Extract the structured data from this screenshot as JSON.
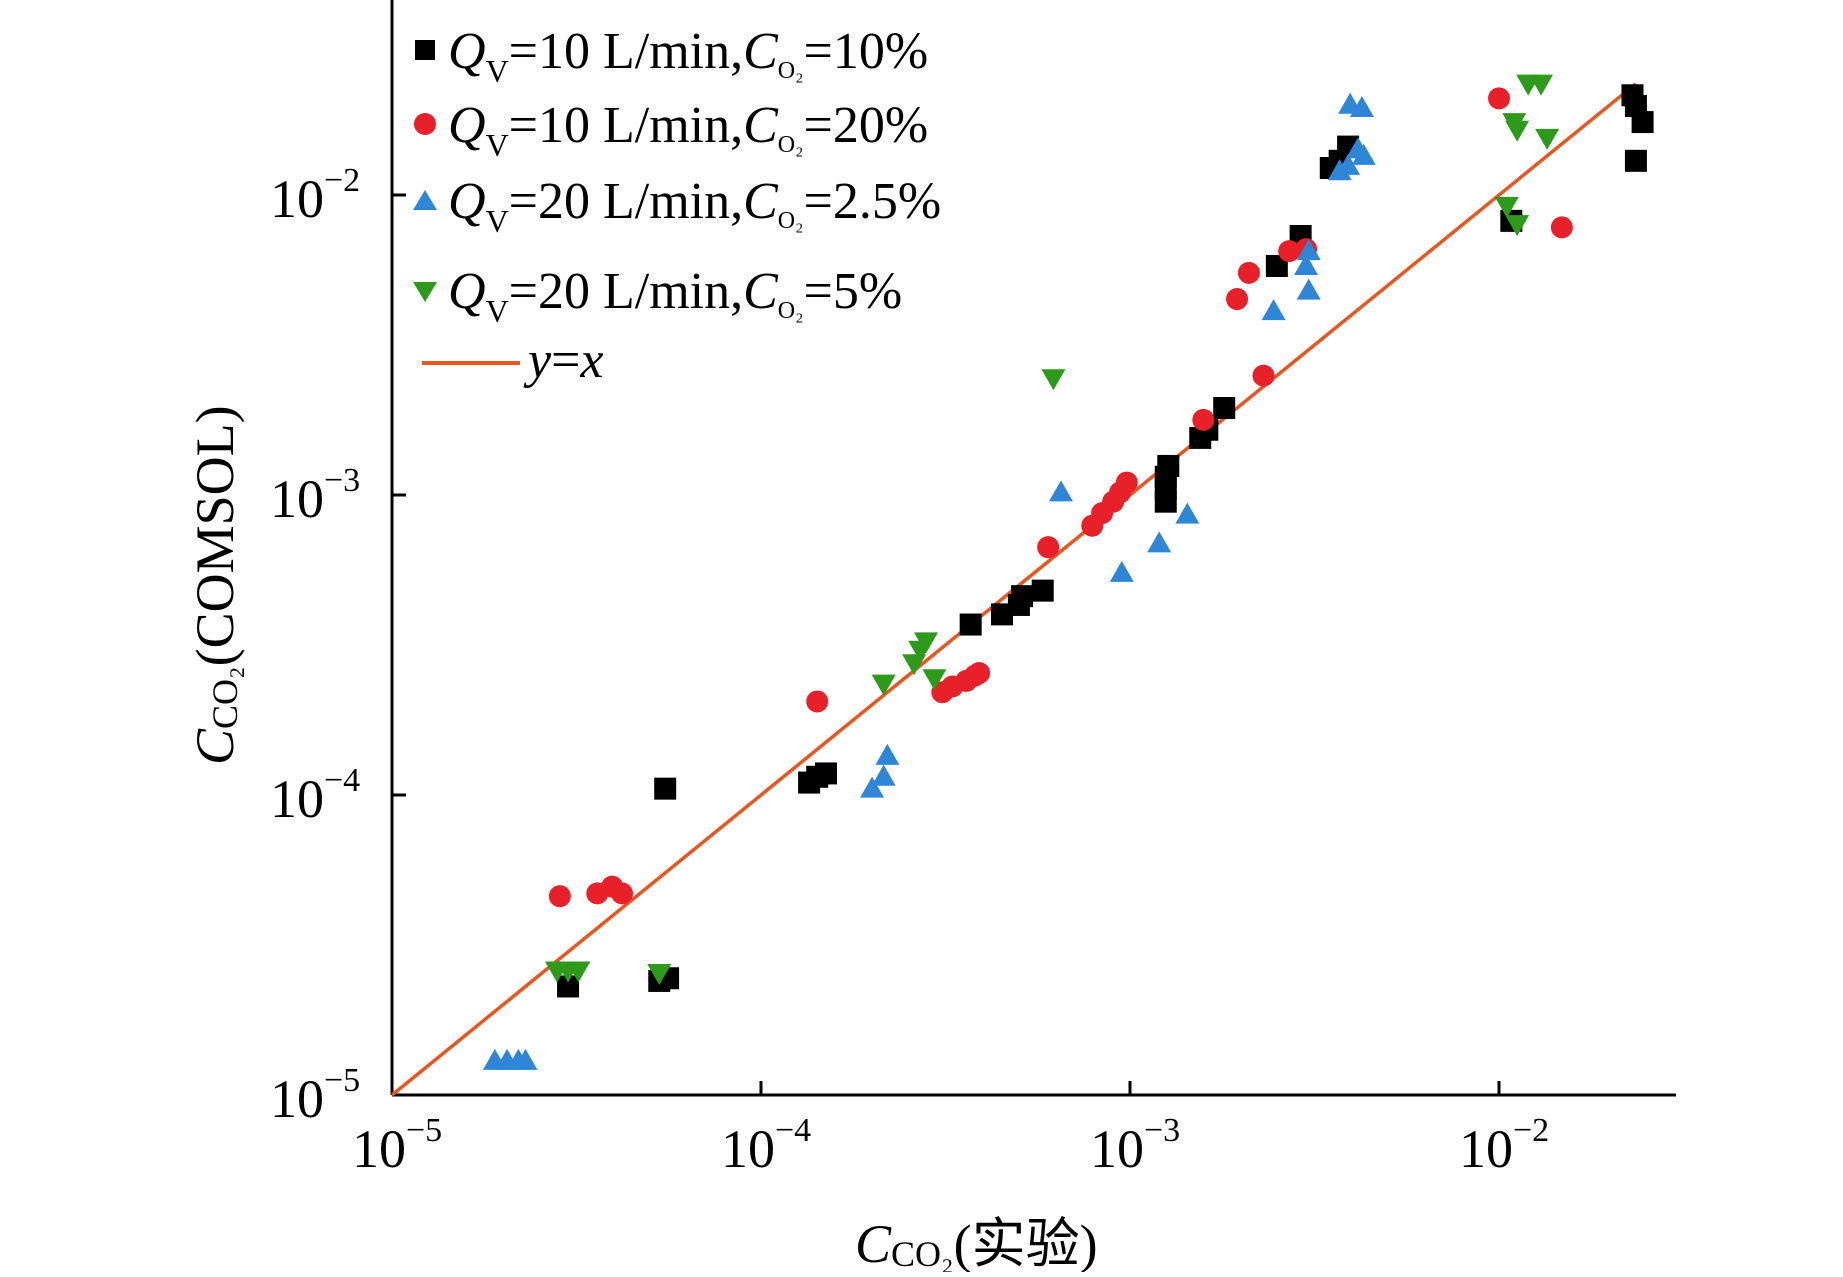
{
  "chart_data": {
    "type": "scatter",
    "title": "",
    "xlabel": {
      "main": "C",
      "sub": "CO₂",
      "suffix": "(实验)"
    },
    "ylabel": {
      "main": "C",
      "sub": "CO₂",
      "suffix": "(COMSOL)"
    },
    "xscale": "log",
    "yscale": "log",
    "xlim": [
      1e-05,
      0.03
    ],
    "ylim": [
      1e-05,
      0.06
    ],
    "xticks": [
      {
        "value": 1e-05,
        "base": "10",
        "exp": "−5"
      },
      {
        "value": 0.0001,
        "base": "10",
        "exp": "−4"
      },
      {
        "value": 0.001,
        "base": "10",
        "exp": "−3"
      },
      {
        "value": 0.01,
        "base": "10",
        "exp": "−2"
      }
    ],
    "yticks": [
      {
        "value": 1e-05,
        "base": "10",
        "exp": "−5"
      },
      {
        "value": 0.0001,
        "base": "10",
        "exp": "−4"
      },
      {
        "value": 0.001,
        "base": "10",
        "exp": "−3"
      },
      {
        "value": 0.01,
        "base": "10",
        "exp": "−2"
      }
    ],
    "grid": false,
    "legend_position": "top-left",
    "series": [
      {
        "name": "QV=10 L/min,CO2=10%",
        "legend": {
          "q": "Q",
          "qsub": "V",
          "rate": "=10 L/min,",
          "c": "C",
          "csub": "O₂",
          "conc": "=10%"
        },
        "marker": "square",
        "color": "#000000",
        "points": [
          [
            3e-05,
            2.3e-05
          ],
          [
            5.3e-05,
            2.4e-05
          ],
          [
            5.6e-05,
            2.45e-05
          ],
          [
            5.5e-05,
            0.000105
          ],
          [
            0.000135,
            0.00011
          ],
          [
            0.000142,
            0.000115
          ],
          [
            0.00015,
            0.000118
          ],
          [
            0.00037,
            0.00037
          ],
          [
            0.00045,
            0.0004
          ],
          [
            0.0005,
            0.00043
          ],
          [
            0.00051,
            0.00046
          ],
          [
            0.00058,
            0.00048
          ],
          [
            0.00125,
            0.00095
          ],
          [
            0.00125,
            0.00105
          ],
          [
            0.00125,
            0.00115
          ],
          [
            0.00127,
            0.00125
          ],
          [
            0.00155,
            0.00155
          ],
          [
            0.00162,
            0.00165
          ],
          [
            0.0018,
            0.00195
          ],
          [
            0.0025,
            0.0058
          ],
          [
            0.0029,
            0.0073
          ],
          [
            0.0035,
            0.0123
          ],
          [
            0.0037,
            0.013
          ],
          [
            0.0039,
            0.0145
          ],
          [
            0.0108,
            0.0082
          ],
          [
            0.023,
            0.0215
          ],
          [
            0.0235,
            0.0198
          ],
          [
            0.0245,
            0.0175
          ],
          [
            0.0235,
            0.013
          ]
        ]
      },
      {
        "name": "QV=10 L/min,CO2=20%",
        "legend": {
          "q": "Q",
          "qsub": "V",
          "rate": "=10 L/min,",
          "c": "C",
          "csub": "O₂",
          "conc": "=20%"
        },
        "marker": "circle",
        "color": "#e8202a",
        "points": [
          [
            2.85e-05,
            4.6e-05
          ],
          [
            3.6e-05,
            4.7e-05
          ],
          [
            3.95e-05,
            4.95e-05
          ],
          [
            4.2e-05,
            4.7e-05
          ],
          [
            0.000142,
            0.000205
          ],
          [
            0.00031,
            0.00022
          ],
          [
            0.00033,
            0.00023
          ],
          [
            0.00036,
            0.00024
          ],
          [
            0.00038,
            0.00025
          ],
          [
            0.00039,
            0.000255
          ],
          [
            0.0006,
            0.00067
          ],
          [
            0.00079,
            0.00079
          ],
          [
            0.00084,
            0.00087
          ],
          [
            0.0009,
            0.00095
          ],
          [
            0.00094,
            0.00102
          ],
          [
            0.00098,
            0.0011
          ],
          [
            0.00158,
            0.00178
          ],
          [
            0.00195,
            0.0045
          ],
          [
            0.0021,
            0.0055
          ],
          [
            0.0023,
            0.0025
          ],
          [
            0.0027,
            0.0065
          ],
          [
            0.003,
            0.0066
          ],
          [
            0.01,
            0.021
          ],
          [
            0.0148,
            0.0078
          ]
        ]
      },
      {
        "name": "QV=20 L/min,CO2=2.5%",
        "legend": {
          "q": "Q",
          "qsub": "V",
          "rate": "=20 L/min,",
          "c": "C",
          "csub": "O₂",
          "conc": "=2.5%"
        },
        "marker": "triangle-up",
        "color": "#2f86d6",
        "points": [
          [
            1.9e-05,
            1.3e-05
          ],
          [
            2.05e-05,
            1.3e-05
          ],
          [
            2.2e-05,
            1.3e-05
          ],
          [
            2.3e-05,
            1.3e-05
          ],
          [
            0.0002,
            0.000105
          ],
          [
            0.000215,
            0.000115
          ],
          [
            0.00022,
            0.000135
          ],
          [
            0.00065,
            0.00102
          ],
          [
            0.00095,
            0.00055
          ],
          [
            0.0012,
            0.00069
          ],
          [
            0.00143,
            0.00086
          ],
          [
            0.00245,
            0.0041
          ],
          [
            0.00305,
            0.0048
          ],
          [
            0.003,
            0.0058
          ],
          [
            0.00305,
            0.0065
          ],
          [
            0.0037,
            0.012
          ],
          [
            0.0039,
            0.0125
          ],
          [
            0.0043,
            0.0135
          ],
          [
            0.00415,
            0.0142
          ],
          [
            0.00395,
            0.02
          ],
          [
            0.00425,
            0.0195
          ]
        ]
      },
      {
        "name": "QV=20 L/min,CO2=5%",
        "legend": {
          "q": "Q",
          "qsub": "V",
          "rate": "=20 L/min,",
          "c": "C",
          "csub": "O₂",
          "conc": "=5%"
        },
        "marker": "triangle-down",
        "color": "#2e9a1c",
        "points": [
          [
            2.8e-05,
            2.6e-05
          ],
          [
            3e-05,
            2.6e-05
          ],
          [
            3.2e-05,
            2.6e-05
          ],
          [
            5.3e-05,
            2.55e-05
          ],
          [
            0.000215,
            0.000235
          ],
          [
            0.00026,
            0.000275
          ],
          [
            0.00027,
            0.000305
          ],
          [
            0.00028,
            0.000325
          ],
          [
            0.000295,
            0.000245
          ],
          [
            0.00062,
            0.00245
          ],
          [
            0.0105,
            0.0092
          ],
          [
            0.0112,
            0.008
          ],
          [
            0.011,
            0.0175
          ],
          [
            0.0112,
            0.0165
          ],
          [
            0.012,
            0.0235
          ],
          [
            0.013,
            0.0235
          ],
          [
            0.0135,
            0.0155
          ]
        ]
      }
    ],
    "reference_line": {
      "name": "y=x",
      "legend": {
        "y": "y",
        "eq": "=",
        "x": "x"
      },
      "color": "#e8571f",
      "from": 1e-05,
      "to": 0.0235
    }
  }
}
